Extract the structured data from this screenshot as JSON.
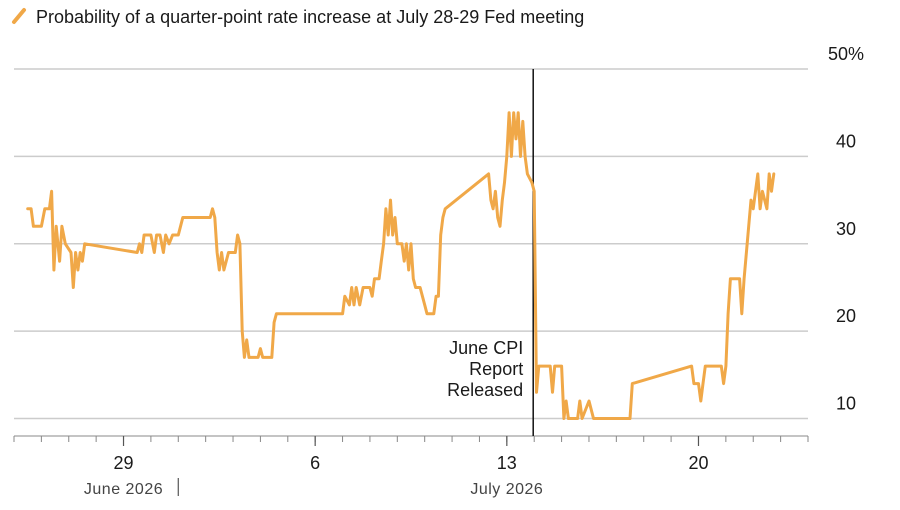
{
  "chart_data": {
    "type": "line",
    "legend": {
      "label": "Probability of a quarter-point rate increase at July 28-29 Fed meeting",
      "placement": "top-left"
    },
    "colors": {
      "series": "#F0A848",
      "grid": "#cccccc",
      "event_line": "#111111",
      "axis": "#888888"
    },
    "y_ticks": [
      {
        "value": 10,
        "label": "10"
      },
      {
        "value": 20,
        "label": "20"
      },
      {
        "value": 30,
        "label": "30"
      },
      {
        "value": 40,
        "label": "40"
      },
      {
        "value": 50,
        "label": "50%"
      }
    ],
    "ylim": [
      8,
      50
    ],
    "x_domain": [
      "2026-06-25",
      "2026-07-24"
    ],
    "x_ticks": [
      {
        "date": "2026-06-29",
        "label": "29"
      },
      {
        "date": "2026-07-06",
        "label": "6"
      },
      {
        "date": "2026-07-13",
        "label": "13"
      },
      {
        "date": "2026-07-20",
        "label": "20"
      }
    ],
    "month_labels": [
      {
        "date": "2026-06-29",
        "label": "June 2026"
      },
      {
        "date": "2026-07-13",
        "label": "July 2026"
      }
    ],
    "month_divider": "2026-07-01",
    "event": {
      "date": "2026-07-14",
      "lines": [
        "June CPI",
        "Report",
        "Released"
      ]
    },
    "series": [
      {
        "values": [
          [
            "2026-06-25 12:00",
            34
          ],
          [
            "2026-06-25 15:00",
            34
          ],
          [
            "2026-06-25 17:00",
            32
          ],
          [
            "2026-06-26 00:00",
            32
          ],
          [
            "2026-06-26 03:00",
            34
          ],
          [
            "2026-06-26 07:00",
            34
          ],
          [
            "2026-06-26 09:00",
            36
          ],
          [
            "2026-06-26 11:00",
            27
          ],
          [
            "2026-06-26 13:00",
            32
          ],
          [
            "2026-06-26 16:00",
            28
          ],
          [
            "2026-06-26 18:00",
            32
          ],
          [
            "2026-06-26 21:00",
            30
          ],
          [
            "2026-06-27 02:00",
            29
          ],
          [
            "2026-06-27 04:00",
            25
          ],
          [
            "2026-06-27 06:00",
            29
          ],
          [
            "2026-06-27 08:00",
            27
          ],
          [
            "2026-06-27 10:00",
            29
          ],
          [
            "2026-06-27 12:00",
            28
          ],
          [
            "2026-06-27 14:00",
            30
          ],
          [
            "2026-06-29 12:00",
            29
          ],
          [
            "2026-06-29 14:00",
            30
          ],
          [
            "2026-06-29 16:00",
            29
          ],
          [
            "2026-06-29 18:00",
            31
          ],
          [
            "2026-06-30 00:00",
            31
          ],
          [
            "2026-06-30 03:00",
            29
          ],
          [
            "2026-06-30 05:00",
            31
          ],
          [
            "2026-06-30 08:00",
            31
          ],
          [
            "2026-06-30 11:00",
            29
          ],
          [
            "2026-06-30 13:00",
            31
          ],
          [
            "2026-06-30 16:00",
            30
          ],
          [
            "2026-06-30 19:00",
            31
          ],
          [
            "2026-07-01 00:00",
            31
          ],
          [
            "2026-07-01 04:00",
            33
          ],
          [
            "2026-07-02 04:00",
            33
          ],
          [
            "2026-07-02 06:00",
            34
          ],
          [
            "2026-07-02 08:00",
            33
          ],
          [
            "2026-07-02 10:00",
            29
          ],
          [
            "2026-07-02 12:00",
            27
          ],
          [
            "2026-07-02 14:00",
            29
          ],
          [
            "2026-07-02 16:00",
            27
          ],
          [
            "2026-07-02 20:00",
            29
          ],
          [
            "2026-07-03 02:00",
            29
          ],
          [
            "2026-07-03 04:00",
            31
          ],
          [
            "2026-07-03 06:00",
            30
          ],
          [
            "2026-07-03 08:00",
            20
          ],
          [
            "2026-07-03 10:00",
            17
          ],
          [
            "2026-07-03 12:00",
            19
          ],
          [
            "2026-07-03 14:00",
            17
          ],
          [
            "2026-07-03 22:00",
            17
          ],
          [
            "2026-07-04 00:00",
            18
          ],
          [
            "2026-07-04 02:00",
            17
          ],
          [
            "2026-07-04 10:00",
            17
          ],
          [
            "2026-07-04 12:00",
            21
          ],
          [
            "2026-07-04 14:00",
            22
          ],
          [
            "2026-07-07 00:00",
            22
          ],
          [
            "2026-07-07 02:00",
            24
          ],
          [
            "2026-07-07 06:00",
            23
          ],
          [
            "2026-07-07 08:00",
            25
          ],
          [
            "2026-07-07 10:00",
            23
          ],
          [
            "2026-07-07 12:00",
            25
          ],
          [
            "2026-07-07 15:00",
            23
          ],
          [
            "2026-07-07 18:00",
            25
          ],
          [
            "2026-07-08 00:00",
            25
          ],
          [
            "2026-07-08 02:00",
            24
          ],
          [
            "2026-07-08 04:00",
            26
          ],
          [
            "2026-07-08 08:00",
            26
          ],
          [
            "2026-07-08 10:00",
            28
          ],
          [
            "2026-07-08 12:00",
            30
          ],
          [
            "2026-07-08 14:00",
            34
          ],
          [
            "2026-07-08 16:00",
            31
          ],
          [
            "2026-07-08 18:00",
            35
          ],
          [
            "2026-07-08 20:00",
            31
          ],
          [
            "2026-07-08 22:00",
            33
          ],
          [
            "2026-07-09 00:00",
            30
          ],
          [
            "2026-07-09 04:00",
            30
          ],
          [
            "2026-07-09 06:00",
            28
          ],
          [
            "2026-07-09 08:00",
            30
          ],
          [
            "2026-07-09 10:00",
            27
          ],
          [
            "2026-07-09 12:00",
            30
          ],
          [
            "2026-07-09 14:00",
            26
          ],
          [
            "2026-07-09 16:00",
            25
          ],
          [
            "2026-07-09 20:00",
            25
          ],
          [
            "2026-07-10 00:00",
            23
          ],
          [
            "2026-07-10 02:00",
            22
          ],
          [
            "2026-07-10 08:00",
            22
          ],
          [
            "2026-07-10 10:00",
            24
          ],
          [
            "2026-07-10 12:00",
            24
          ],
          [
            "2026-07-10 14:00",
            31
          ],
          [
            "2026-07-10 16:00",
            33
          ],
          [
            "2026-07-10 18:00",
            34
          ],
          [
            "2026-07-12 08:00",
            38
          ],
          [
            "2026-07-12 10:00",
            35
          ],
          [
            "2026-07-12 12:00",
            34
          ],
          [
            "2026-07-12 14:00",
            36
          ],
          [
            "2026-07-12 16:00",
            33
          ],
          [
            "2026-07-12 18:00",
            32
          ],
          [
            "2026-07-12 20:00",
            35
          ],
          [
            "2026-07-12 22:00",
            37
          ],
          [
            "2026-07-13 00:00",
            40
          ],
          [
            "2026-07-13 02:00",
            45
          ],
          [
            "2026-07-13 04:00",
            40
          ],
          [
            "2026-07-13 06:00",
            45
          ],
          [
            "2026-07-13 08:00",
            42
          ],
          [
            "2026-07-13 10:00",
            45
          ],
          [
            "2026-07-13 12:00",
            40
          ],
          [
            "2026-07-13 14:00",
            44
          ],
          [
            "2026-07-13 16:00",
            40
          ],
          [
            "2026-07-13 18:00",
            38
          ],
          [
            "2026-07-13 22:00",
            37
          ],
          [
            "2026-07-14 00:00",
            36
          ],
          [
            "2026-07-14 02:00",
            13
          ],
          [
            "2026-07-14 04:00",
            16
          ],
          [
            "2026-07-14 14:00",
            16
          ],
          [
            "2026-07-14 16:00",
            13
          ],
          [
            "2026-07-14 18:00",
            16
          ],
          [
            "2026-07-15 00:00",
            16
          ],
          [
            "2026-07-15 02:00",
            10
          ],
          [
            "2026-07-15 04:00",
            12
          ],
          [
            "2026-07-15 06:00",
            10
          ],
          [
            "2026-07-15 14:00",
            10
          ],
          [
            "2026-07-15 16:00",
            12
          ],
          [
            "2026-07-15 18:00",
            10
          ],
          [
            "2026-07-16 00:00",
            12
          ],
          [
            "2026-07-16 04:00",
            10
          ],
          [
            "2026-07-17 12:00",
            10
          ],
          [
            "2026-07-17 14:00",
            14
          ],
          [
            "2026-07-19 18:00",
            16
          ],
          [
            "2026-07-19 20:00",
            14
          ],
          [
            "2026-07-20 00:00",
            14
          ],
          [
            "2026-07-20 02:00",
            12
          ],
          [
            "2026-07-20 04:00",
            14
          ],
          [
            "2026-07-20 06:00",
            16
          ],
          [
            "2026-07-20 20:00",
            16
          ],
          [
            "2026-07-20 22:00",
            14
          ],
          [
            "2026-07-21 00:00",
            16
          ],
          [
            "2026-07-21 02:00",
            22
          ],
          [
            "2026-07-21 04:00",
            26
          ],
          [
            "2026-07-21 12:00",
            26
          ],
          [
            "2026-07-21 14:00",
            22
          ],
          [
            "2026-07-21 16:00",
            26
          ],
          [
            "2026-07-21 18:00",
            29
          ],
          [
            "2026-07-21 20:00",
            32
          ],
          [
            "2026-07-21 22:00",
            35
          ],
          [
            "2026-07-22 00:00",
            34
          ],
          [
            "2026-07-22 02:00",
            36
          ],
          [
            "2026-07-22 04:00",
            38
          ],
          [
            "2026-07-22 06:00",
            34
          ],
          [
            "2026-07-22 08:00",
            36
          ],
          [
            "2026-07-22 12:00",
            34
          ],
          [
            "2026-07-22 14:00",
            38
          ],
          [
            "2026-07-22 16:00",
            36
          ],
          [
            "2026-07-22 18:00",
            38
          ]
        ]
      }
    ]
  }
}
